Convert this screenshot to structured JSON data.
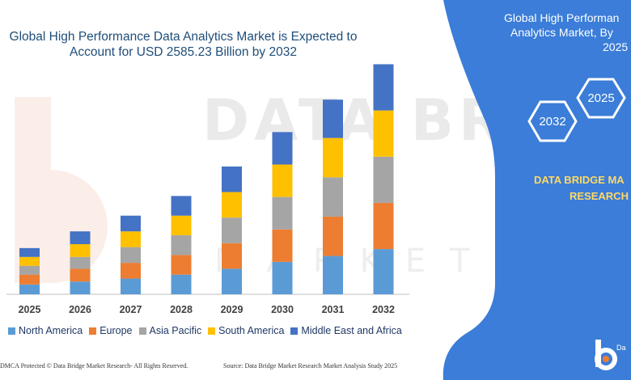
{
  "chart_data": {
    "type": "bar",
    "stacked": true,
    "title": "Global High Performance Data Analytics Market is Expected to Account for USD 2585.23 Billion by 2032",
    "title_lines": [
      "Global High Performance Data Analytics Market is Expected to",
      "Account for USD 2585.23 Billion by 2032"
    ],
    "categories": [
      "2025",
      "2026",
      "2027",
      "2028",
      "2029",
      "2030",
      "2031",
      "2032"
    ],
    "series": [
      {
        "name": "North America",
        "color": "#5b9bd5",
        "values": [
          10,
          13,
          16,
          20,
          26,
          33,
          39,
          46
        ]
      },
      {
        "name": "Europe",
        "color": "#ed7d31",
        "values": [
          10,
          13,
          16,
          20,
          26,
          33,
          40,
          47
        ]
      },
      {
        "name": "Asia Pacific",
        "color": "#a5a5a5",
        "values": [
          9,
          12,
          16,
          20,
          26,
          33,
          40,
          47
        ]
      },
      {
        "name": "South America",
        "color": "#ffc000",
        "values": [
          9,
          13,
          16,
          20,
          26,
          33,
          40,
          47
        ]
      },
      {
        "name": "Middle East and Africa",
        "color": "#4472c4",
        "values": [
          9,
          13,
          16,
          20,
          26,
          33,
          39,
          47
        ]
      }
    ],
    "ylim": [
      0,
      250
    ],
    "grid": false,
    "legend_position": "bottom"
  },
  "panel": {
    "title_line1": "Global High Performan",
    "title_line2": "Analytics Market, By",
    "title_line3": "2025",
    "hex_2025": "2025",
    "hex_2032": "2032",
    "brand_line1": "DATA BRIDGE MA",
    "brand_line2": "RESEARCH",
    "bg_color": "#3b7dd8",
    "logo_text": "Da"
  },
  "watermark": {
    "text": "DATA BRIDGE",
    "sub": "MARKET RESEARCH"
  },
  "footer": {
    "copyright": "DMCA Protected © Data Bridge Market Research-  All Rights Reserved.",
    "source": "Source: Data Bridge Market Research  Market Analysis Study 2025"
  }
}
